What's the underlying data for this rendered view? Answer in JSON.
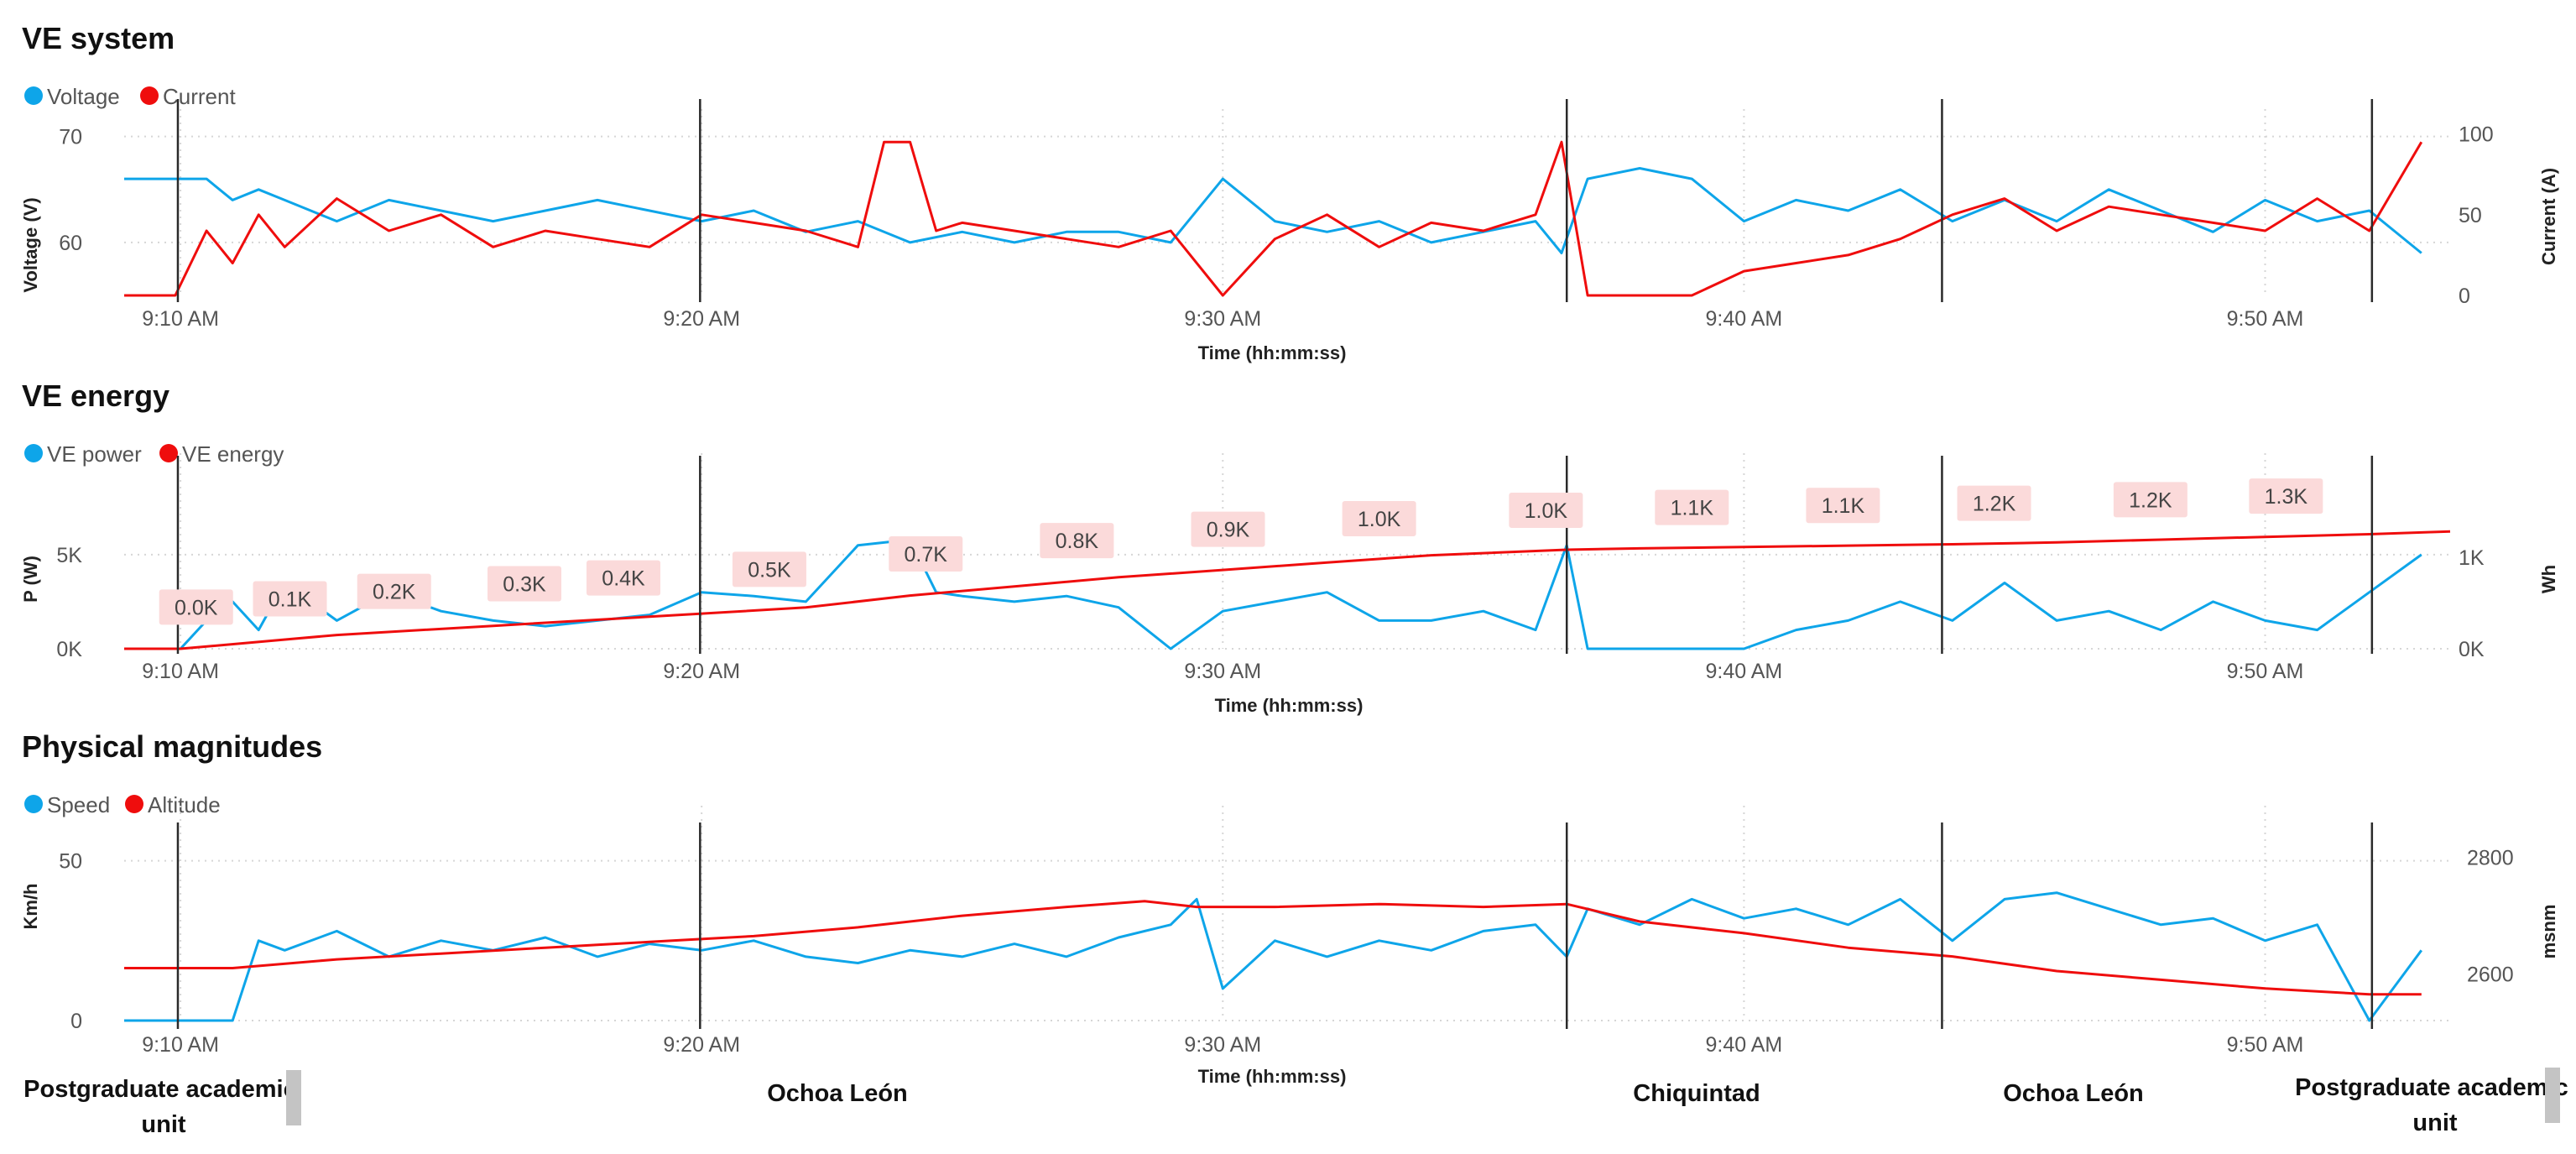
{
  "axis_title_x": "Time (hh:mm:ss)",
  "x_ticks": [
    "9:10 AM",
    "9:20 AM",
    "9:30 AM",
    "9:40 AM",
    "9:50 AM"
  ],
  "colors": {
    "blue": "#0ea5e9",
    "red": "#ef0d0d",
    "label_box": "#fbdada"
  },
  "locations": {
    "left": "Postgraduate academic unit",
    "m1": "Ochoa León",
    "m2": "Chiquintad",
    "m3": "Ochoa León",
    "right": "Postgraduate academic unit"
  },
  "chart_data": [
    {
      "type": "line",
      "title": "VE system",
      "xlabel": "Time (hh:mm:ss)",
      "x_range_min": [
        8.92,
        53.55
      ],
      "x_ticks_min": [
        10,
        20,
        30,
        40,
        50
      ],
      "event_markers_min": [
        9.95,
        19.97,
        36.6,
        43.8,
        52.05
      ],
      "legend": [
        "Voltage",
        "Current"
      ],
      "left_axis": {
        "label": "Voltage (V)",
        "range": [
          55,
          71
        ],
        "ticks": [
          60,
          70
        ],
        "tick_labels": [
          "60",
          "70"
        ]
      },
      "right_axis": {
        "label": "Current (A)",
        "range": [
          0,
          105
        ],
        "ticks": [
          0,
          50,
          100
        ],
        "tick_labels": [
          "0",
          "50",
          "100"
        ]
      },
      "series": [
        {
          "name": "Voltage",
          "axis": "left",
          "color": "blue",
          "x": [
            8.92,
            10.5,
            11.0,
            11.5,
            12.0,
            13.0,
            14.0,
            15.0,
            16.0,
            17.0,
            18.0,
            19.0,
            20.0,
            21.0,
            22.0,
            23.0,
            24.0,
            25.0,
            26.0,
            27.0,
            28.0,
            29.0,
            30.0,
            31.0,
            32.0,
            33.0,
            34.0,
            35.0,
            36.0,
            36.5,
            37.0,
            38.0,
            39.0,
            40.0,
            41.0,
            42.0,
            43.0,
            44.0,
            45.0,
            46.0,
            47.0,
            48.0,
            49.0,
            50.0,
            51.0,
            52.0,
            53.0
          ],
          "y": [
            66,
            66,
            64,
            65,
            64,
            62,
            64,
            63,
            62,
            63,
            64,
            63,
            62,
            63,
            61,
            62,
            60,
            61,
            60,
            61,
            61,
            60,
            66,
            62,
            61,
            62,
            60,
            61,
            62,
            59,
            66,
            67,
            66,
            62,
            64,
            63,
            65,
            62,
            64,
            62,
            65,
            63,
            61,
            64,
            62,
            63,
            59
          ]
        },
        {
          "name": "Current",
          "axis": "right",
          "color": "red",
          "x": [
            8.92,
            9.9,
            10.5,
            11.0,
            11.5,
            12.0,
            13.0,
            14.0,
            15.0,
            16.0,
            17.0,
            18.0,
            19.0,
            20.0,
            21.0,
            22.0,
            23.0,
            23.5,
            24.0,
            24.5,
            25.0,
            26.0,
            27.0,
            28.0,
            29.0,
            30.0,
            31.0,
            32.0,
            33.0,
            34.0,
            35.0,
            36.0,
            36.5,
            37.0,
            38.0,
            39.0,
            40.0,
            41.0,
            42.0,
            43.0,
            44.0,
            45.0,
            46.0,
            47.0,
            48.0,
            49.0,
            50.0,
            51.0,
            52.0,
            53.0
          ],
          "y": [
            0,
            0,
            40,
            20,
            50,
            30,
            60,
            40,
            50,
            30,
            40,
            35,
            30,
            50,
            45,
            40,
            30,
            95,
            95,
            40,
            45,
            40,
            35,
            30,
            40,
            0,
            35,
            50,
            30,
            45,
            40,
            50,
            95,
            0,
            0,
            0,
            15,
            20,
            25,
            35,
            50,
            60,
            40,
            55,
            50,
            45,
            40,
            60,
            40,
            95
          ]
        }
      ]
    },
    {
      "type": "line",
      "title": "VE energy",
      "xlabel": "Time (hh:mm:ss)",
      "x_range_min": [
        8.92,
        53.55
      ],
      "x_ticks_min": [
        10,
        20,
        30,
        40,
        50
      ],
      "event_markers_min": [
        9.95,
        19.97,
        36.6,
        43.8,
        52.05
      ],
      "legend": [
        "VE power",
        "VE energy"
      ],
      "left_axis": {
        "label": "P (W)",
        "range": [
          0,
          9500
        ],
        "ticks": [
          0,
          5000
        ],
        "tick_labels": [
          "0K",
          "5K"
        ]
      },
      "right_axis": {
        "label": "Wh",
        "range": [
          0,
          1950
        ],
        "ticks": [
          0,
          1000
        ],
        "tick_labels": [
          "0K",
          "1K"
        ]
      },
      "series": [
        {
          "name": "VE power",
          "axis": "left",
          "color": "blue",
          "x": [
            8.92,
            10.0,
            10.5,
            11.0,
            11.5,
            12.0,
            13.0,
            14.0,
            15.0,
            16.0,
            17.0,
            18.0,
            19.0,
            20.0,
            21.0,
            22.0,
            23.0,
            24.0,
            24.5,
            25.0,
            26.0,
            27.0,
            28.0,
            29.0,
            30.0,
            31.0,
            32.0,
            33.0,
            34.0,
            35.0,
            36.0,
            36.6,
            37.0,
            38.0,
            39.0,
            40.0,
            41.0,
            42.0,
            43.0,
            44.0,
            45.0,
            46.0,
            47.0,
            48.0,
            49.0,
            50.0,
            51.0,
            52.0,
            53.0
          ],
          "y": [
            0,
            0,
            1500,
            2500,
            1000,
            3500,
            1500,
            3000,
            2000,
            1500,
            1200,
            1500,
            1800,
            3000,
            2800,
            2500,
            5500,
            5800,
            3000,
            2800,
            2500,
            2800,
            2200,
            0,
            2000,
            2500,
            3000,
            1500,
            1500,
            2000,
            1000,
            5500,
            0,
            0,
            0,
            0,
            1000,
            1500,
            2500,
            1500,
            3500,
            1500,
            2000,
            1000,
            2500,
            1500,
            1000,
            3000,
            5000
          ]
        },
        {
          "name": "VE energy",
          "axis": "right",
          "color": "red",
          "x": [
            8.92,
            10.0,
            13.0,
            16.0,
            19.0,
            22.0,
            24.0,
            26.0,
            28.0,
            30.0,
            32.0,
            34.0,
            36.6,
            38.0,
            40.0,
            42.0,
            44.0,
            46.0,
            48.0,
            50.0,
            52.0,
            53.55
          ],
          "y": [
            0,
            0,
            150,
            250,
            350,
            450,
            580,
            680,
            780,
            860,
            940,
            1020,
            1080,
            1095,
            1110,
            1125,
            1140,
            1160,
            1190,
            1220,
            1250,
            1280
          ]
        }
      ],
      "data_labels": {
        "x": [
          10.3,
          12.1,
          14.1,
          16.6,
          18.5,
          21.3,
          24.3,
          27.2,
          30.1,
          33.0,
          36.2,
          39.0,
          41.9,
          44.8,
          47.8,
          50.4
        ],
        "text": [
          "0.0K",
          "0.1K",
          "0.2K",
          "0.3K",
          "0.4K",
          "0.5K",
          "0.7K",
          "0.8K",
          "0.9K",
          "1.0K",
          "1.0K",
          "1.1K",
          "1.1K",
          "1.2K",
          "1.2K",
          "1.3K"
        ]
      }
    },
    {
      "type": "line",
      "title": "Physical magnitudes",
      "xlabel": "Time (hh:mm:ss)",
      "x_range_min": [
        8.92,
        53.55
      ],
      "x_ticks_min": [
        10,
        20,
        30,
        40,
        50
      ],
      "event_markers_min": [
        9.95,
        19.97,
        36.6,
        43.8,
        52.05
      ],
      "legend": [
        "Speed",
        "Altitude"
      ],
      "left_axis": {
        "label": "Km/h",
        "range": [
          0,
          62
        ],
        "ticks": [
          0,
          50
        ],
        "tick_labels": [
          "0",
          "50"
        ]
      },
      "right_axis": {
        "label": "msnm",
        "range": [
          2520,
          2860
        ],
        "ticks": [
          2600,
          2800
        ],
        "tick_labels": [
          "2600",
          "2800"
        ]
      },
      "series": [
        {
          "name": "Speed",
          "axis": "left",
          "color": "blue",
          "x": [
            8.92,
            11.0,
            11.5,
            12.0,
            13.0,
            14.0,
            15.0,
            16.0,
            17.0,
            18.0,
            19.0,
            20.0,
            21.0,
            22.0,
            23.0,
            24.0,
            25.0,
            26.0,
            27.0,
            28.0,
            29.0,
            29.5,
            30.0,
            31.0,
            32.0,
            33.0,
            34.0,
            35.0,
            36.0,
            36.6,
            37.0,
            38.0,
            39.0,
            40.0,
            41.0,
            42.0,
            43.0,
            44.0,
            45.0,
            46.0,
            47.0,
            48.0,
            49.0,
            50.0,
            51.0,
            52.0,
            53.0
          ],
          "y": [
            0,
            0,
            25,
            22,
            28,
            20,
            25,
            22,
            26,
            20,
            24,
            22,
            25,
            20,
            18,
            22,
            20,
            24,
            20,
            26,
            30,
            38,
            10,
            25,
            20,
            25,
            22,
            28,
            30,
            20,
            35,
            30,
            38,
            32,
            35,
            30,
            38,
            25,
            38,
            40,
            35,
            30,
            32,
            25,
            30,
            0,
            22
          ]
        },
        {
          "name": "Altitude",
          "axis": "right",
          "color": "red",
          "x": [
            8.92,
            11.0,
            13.0,
            15.0,
            17.0,
            19.0,
            21.0,
            23.0,
            25.0,
            27.0,
            28.5,
            29.5,
            31.0,
            33.0,
            35.0,
            36.6,
            38.0,
            40.0,
            42.0,
            44.0,
            46.0,
            48.0,
            50.0,
            52.0,
            53.0
          ],
          "y": [
            2610,
            2610,
            2625,
            2635,
            2645,
            2655,
            2665,
            2680,
            2700,
            2715,
            2725,
            2715,
            2715,
            2720,
            2715,
            2720,
            2690,
            2670,
            2645,
            2630,
            2605,
            2590,
            2575,
            2565,
            2565
          ]
        }
      ]
    }
  ]
}
